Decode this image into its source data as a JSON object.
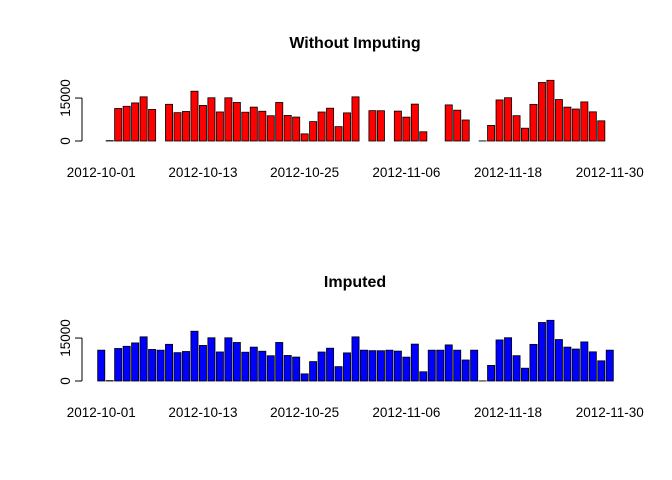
{
  "chart_data": [
    {
      "type": "bar",
      "title": "Without Imputing",
      "xlabel": "",
      "ylabel": "",
      "color": "#ff0000",
      "ylim": [
        0,
        22000
      ],
      "yticks": [
        0,
        15000
      ],
      "ytick_labels": [
        "0",
        "15000"
      ],
      "xtick_labels": [
        "2012-10-01",
        "2012-10-13",
        "2012-10-25",
        "2012-11-06",
        "2012-11-18",
        "2012-11-30"
      ],
      "categories": [
        "2012-10-01",
        "2012-10-02",
        "2012-10-03",
        "2012-10-04",
        "2012-10-05",
        "2012-10-06",
        "2012-10-07",
        "2012-10-08",
        "2012-10-09",
        "2012-10-10",
        "2012-10-11",
        "2012-10-12",
        "2012-10-13",
        "2012-10-14",
        "2012-10-15",
        "2012-10-16",
        "2012-10-17",
        "2012-10-18",
        "2012-10-19",
        "2012-10-20",
        "2012-10-21",
        "2012-10-22",
        "2012-10-23",
        "2012-10-24",
        "2012-10-25",
        "2012-10-26",
        "2012-10-27",
        "2012-10-28",
        "2012-10-29",
        "2012-10-30",
        "2012-10-31",
        "2012-11-01",
        "2012-11-02",
        "2012-11-03",
        "2012-11-04",
        "2012-11-05",
        "2012-11-06",
        "2012-11-07",
        "2012-11-08",
        "2012-11-09",
        "2012-11-10",
        "2012-11-11",
        "2012-11-12",
        "2012-11-13",
        "2012-11-14",
        "2012-11-15",
        "2012-11-16",
        "2012-11-17",
        "2012-11-18",
        "2012-11-19",
        "2012-11-20",
        "2012-11-21",
        "2012-11-22",
        "2012-11-23",
        "2012-11-24",
        "2012-11-25",
        "2012-11-26",
        "2012-11-27",
        "2012-11-28",
        "2012-11-29",
        "2012-11-30"
      ],
      "values": [
        0,
        126,
        11352,
        12116,
        13294,
        15420,
        11015,
        0,
        12811,
        9900,
        10304,
        17382,
        12426,
        15098,
        10139,
        15084,
        13452,
        10056,
        11829,
        10395,
        8821,
        13460,
        8918,
        8355,
        2492,
        6778,
        10119,
        11458,
        5018,
        9819,
        15414,
        0,
        10600,
        10571,
        0,
        10439,
        8334,
        12883,
        3219,
        0,
        0,
        12608,
        10765,
        7336,
        0,
        41,
        5441,
        14339,
        15110,
        8841,
        4472,
        12787,
        20427,
        21194,
        14478,
        11834,
        11162,
        13646,
        10183,
        7047,
        0
      ]
    },
    {
      "type": "bar",
      "title": "Imputed",
      "xlabel": "",
      "ylabel": "",
      "color": "#0000ff",
      "ylim": [
        0,
        22000
      ],
      "yticks": [
        0,
        15000
      ],
      "ytick_labels": [
        "0",
        "15000"
      ],
      "xtick_labels": [
        "2012-10-01",
        "2012-10-13",
        "2012-10-25",
        "2012-11-06",
        "2012-11-18",
        "2012-11-30"
      ],
      "categories": [
        "2012-10-01",
        "2012-10-02",
        "2012-10-03",
        "2012-10-04",
        "2012-10-05",
        "2012-10-06",
        "2012-10-07",
        "2012-10-08",
        "2012-10-09",
        "2012-10-10",
        "2012-10-11",
        "2012-10-12",
        "2012-10-13",
        "2012-10-14",
        "2012-10-15",
        "2012-10-16",
        "2012-10-17",
        "2012-10-18",
        "2012-10-19",
        "2012-10-20",
        "2012-10-21",
        "2012-10-22",
        "2012-10-23",
        "2012-10-24",
        "2012-10-25",
        "2012-10-26",
        "2012-10-27",
        "2012-10-28",
        "2012-10-29",
        "2012-10-30",
        "2012-10-31",
        "2012-11-01",
        "2012-11-02",
        "2012-11-03",
        "2012-11-04",
        "2012-11-05",
        "2012-11-06",
        "2012-11-07",
        "2012-11-08",
        "2012-11-09",
        "2012-11-10",
        "2012-11-11",
        "2012-11-12",
        "2012-11-13",
        "2012-11-14",
        "2012-11-15",
        "2012-11-16",
        "2012-11-17",
        "2012-11-18",
        "2012-11-19",
        "2012-11-20",
        "2012-11-21",
        "2012-11-22",
        "2012-11-23",
        "2012-11-24",
        "2012-11-25",
        "2012-11-26",
        "2012-11-27",
        "2012-11-28",
        "2012-11-29",
        "2012-11-30"
      ],
      "values": [
        10766,
        126,
        11352,
        12116,
        13294,
        15420,
        11015,
        10766,
        12811,
        9900,
        10304,
        17382,
        12426,
        15098,
        10139,
        15084,
        13452,
        10056,
        11829,
        10395,
        8821,
        13460,
        8918,
        8355,
        2492,
        6778,
        10119,
        11458,
        5018,
        9819,
        15414,
        10766,
        10600,
        10571,
        10766,
        10439,
        8334,
        12883,
        3219,
        10766,
        10766,
        12608,
        10765,
        7336,
        10766,
        41,
        5441,
        14339,
        15110,
        8841,
        4472,
        12787,
        20427,
        21194,
        14478,
        11834,
        11162,
        13646,
        10183,
        7047,
        10766
      ]
    }
  ]
}
